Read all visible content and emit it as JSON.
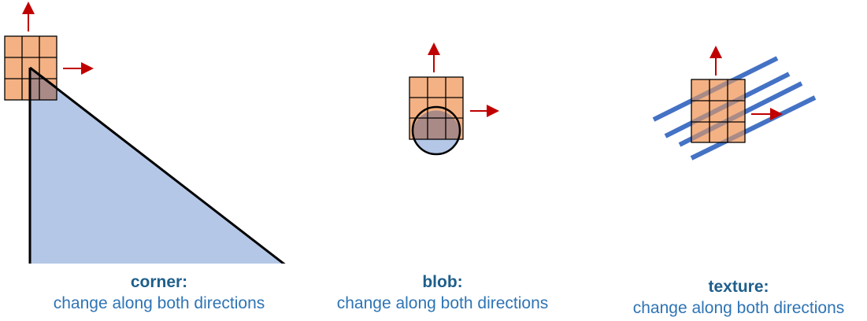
{
  "panels": [
    {
      "title": "corner:",
      "description": "change along both directions"
    },
    {
      "title": "blob:",
      "description": "change along both directions"
    },
    {
      "title": "texture:",
      "description": "change along both directions"
    }
  ],
  "colors": {
    "window_fill": "#f4b183",
    "grid_line": "#000000",
    "arrow": "#c00000",
    "shape_fill": "#b4c7e7",
    "stripe": "#4472c4",
    "overlap": "#a98a86",
    "caption_title": "#1f5f8b",
    "caption_text": "#2e74b5"
  },
  "icons": [
    "up-arrow-icon",
    "right-arrow-icon"
  ]
}
